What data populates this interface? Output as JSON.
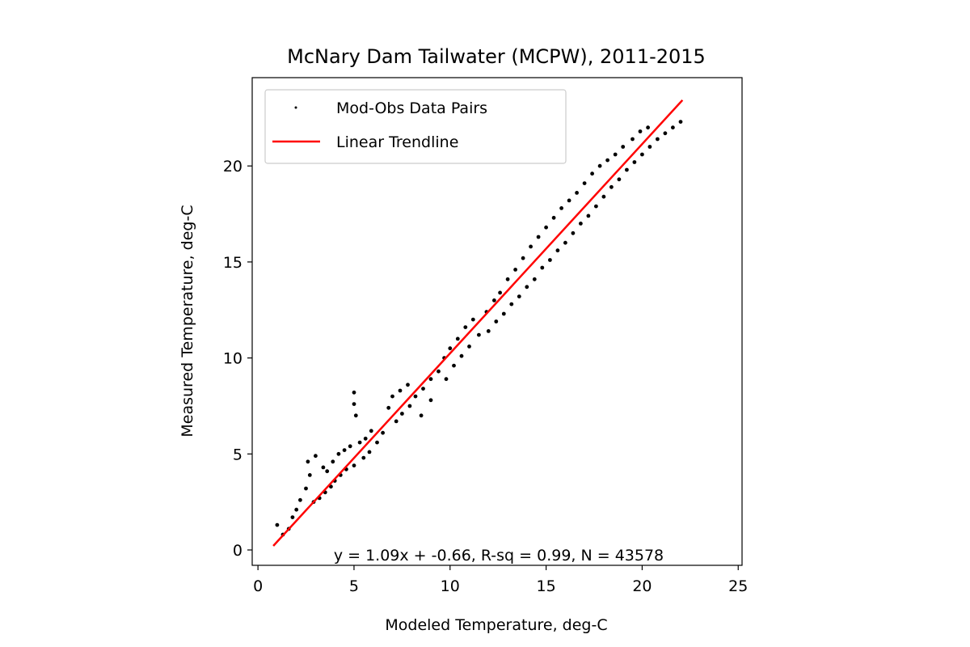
{
  "chart_data": {
    "type": "scatter",
    "title": "McNary Dam Tailwater (MCPW), 2011-2015",
    "xlabel": "Modeled Temperature, deg-C",
    "ylabel": "Measured Temperature, deg-C",
    "xlim": [
      -0.3,
      25.2
    ],
    "ylim": [
      -0.8,
      24.6
    ],
    "xticks": [
      0,
      5,
      10,
      15,
      20,
      25
    ],
    "yticks": [
      0,
      5,
      10,
      15,
      20
    ],
    "xtick_labels": [
      "0",
      "5",
      "10",
      "15",
      "20",
      "25"
    ],
    "ytick_labels": [
      "0",
      "5",
      "10",
      "15",
      "20"
    ],
    "grid": false,
    "legend_placement": "upper-left",
    "legend": {
      "scatter_label": "Mod-Obs Data Pairs",
      "line_label": "Linear Trendline"
    },
    "series": [
      {
        "name": "Mod-Obs Data Pairs",
        "kind": "scatter",
        "color": "#000000",
        "points": [
          [
            1.0,
            1.3
          ],
          [
            1.3,
            0.8
          ],
          [
            1.6,
            1.1
          ],
          [
            1.8,
            1.7
          ],
          [
            2.0,
            2.1
          ],
          [
            2.2,
            2.6
          ],
          [
            2.5,
            3.2
          ],
          [
            2.7,
            3.9
          ],
          [
            2.6,
            4.6
          ],
          [
            3.0,
            4.9
          ],
          [
            3.4,
            4.3
          ],
          [
            3.6,
            4.1
          ],
          [
            3.9,
            4.6
          ],
          [
            4.2,
            5.0
          ],
          [
            4.5,
            5.2
          ],
          [
            4.8,
            5.4
          ],
          [
            2.9,
            2.5
          ],
          [
            3.2,
            2.7
          ],
          [
            3.5,
            3.0
          ],
          [
            3.8,
            3.3
          ],
          [
            4.0,
            3.6
          ],
          [
            4.3,
            3.9
          ],
          [
            4.6,
            4.2
          ],
          [
            5.0,
            4.4
          ],
          [
            5.0,
            8.2
          ],
          [
            5.0,
            7.6
          ],
          [
            5.1,
            7.0
          ],
          [
            5.3,
            5.6
          ],
          [
            5.6,
            5.8
          ],
          [
            5.9,
            6.2
          ],
          [
            5.5,
            4.8
          ],
          [
            5.8,
            5.1
          ],
          [
            6.2,
            5.6
          ],
          [
            6.5,
            6.1
          ],
          [
            6.8,
            7.4
          ],
          [
            7.0,
            8.0
          ],
          [
            7.4,
            8.3
          ],
          [
            7.8,
            8.6
          ],
          [
            7.2,
            6.7
          ],
          [
            7.5,
            7.1
          ],
          [
            7.9,
            7.5
          ],
          [
            8.2,
            8.0
          ],
          [
            8.6,
            8.4
          ],
          [
            9.0,
            8.9
          ],
          [
            8.5,
            7.0
          ],
          [
            9.0,
            7.8
          ],
          [
            9.4,
            9.3
          ],
          [
            9.7,
            10.0
          ],
          [
            10.0,
            10.5
          ],
          [
            10.4,
            11.0
          ],
          [
            10.8,
            11.6
          ],
          [
            11.2,
            12.0
          ],
          [
            9.8,
            8.9
          ],
          [
            10.2,
            9.6
          ],
          [
            10.6,
            10.1
          ],
          [
            11.0,
            10.6
          ],
          [
            11.5,
            11.2
          ],
          [
            11.9,
            12.4
          ],
          [
            12.3,
            13.0
          ],
          [
            12.6,
            13.4
          ],
          [
            12.0,
            11.4
          ],
          [
            12.4,
            11.9
          ],
          [
            12.8,
            12.3
          ],
          [
            13.2,
            12.8
          ],
          [
            13.0,
            14.1
          ],
          [
            13.4,
            14.6
          ],
          [
            13.8,
            15.2
          ],
          [
            14.2,
            15.8
          ],
          [
            14.6,
            16.3
          ],
          [
            13.6,
            13.2
          ],
          [
            14.0,
            13.7
          ],
          [
            14.4,
            14.1
          ],
          [
            14.8,
            14.7
          ],
          [
            15.2,
            15.1
          ],
          [
            15.0,
            16.8
          ],
          [
            15.4,
            17.3
          ],
          [
            15.8,
            17.8
          ],
          [
            16.2,
            18.2
          ],
          [
            15.6,
            15.6
          ],
          [
            16.0,
            16.0
          ],
          [
            16.4,
            16.5
          ],
          [
            16.8,
            17.0
          ],
          [
            17.2,
            17.4
          ],
          [
            16.6,
            18.6
          ],
          [
            17.0,
            19.1
          ],
          [
            17.4,
            19.6
          ],
          [
            17.8,
            20.0
          ],
          [
            18.2,
            20.3
          ],
          [
            17.6,
            17.9
          ],
          [
            18.0,
            18.4
          ],
          [
            18.4,
            18.9
          ],
          [
            18.8,
            19.3
          ],
          [
            19.2,
            19.8
          ],
          [
            18.6,
            20.6
          ],
          [
            19.0,
            21.0
          ],
          [
            19.5,
            21.4
          ],
          [
            19.9,
            21.8
          ],
          [
            20.3,
            22.0
          ],
          [
            19.6,
            20.2
          ],
          [
            20.0,
            20.6
          ],
          [
            20.4,
            21.0
          ],
          [
            20.8,
            21.4
          ],
          [
            21.2,
            21.7
          ],
          [
            21.6,
            22.0
          ],
          [
            22.0,
            22.3
          ]
        ]
      },
      {
        "name": "Linear Trendline",
        "kind": "line",
        "color": "#ff0000",
        "x": [
          0.8,
          22.1
        ],
        "slope": 1.09,
        "intercept": -0.66
      }
    ],
    "annotation": "y = 1.09x + -0.66, R-sq = 0.99, N = 43578"
  }
}
